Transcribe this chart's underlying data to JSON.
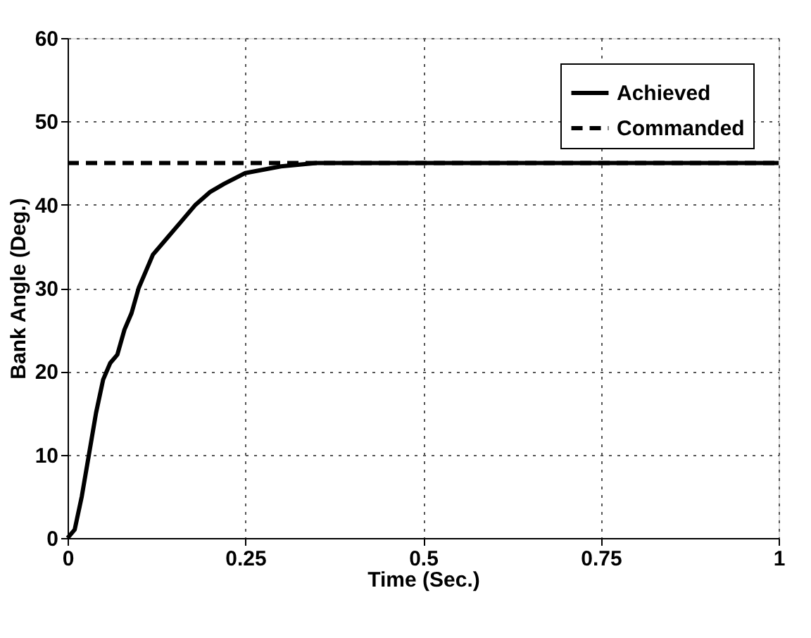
{
  "chart_data": {
    "type": "line",
    "xlabel": "Time (Sec.)",
    "ylabel": "Bank Angle (Deg.)",
    "xlim": [
      0,
      1
    ],
    "xticks": [
      0,
      0.25,
      0.5,
      0.75,
      1
    ],
    "ylim": [
      0,
      60
    ],
    "yticks": [
      0,
      10,
      20,
      30,
      40,
      50,
      60
    ],
    "grid": true,
    "legend": "top right",
    "marker": "none",
    "series": [
      {
        "name": "Achieved",
        "color": "#000000",
        "line_style": "solid",
        "x": [
          0,
          0.01,
          0.02,
          0.03,
          0.04,
          0.05,
          0.06,
          0.07,
          0.08,
          0.09,
          0.1,
          0.11,
          0.12,
          0.14,
          0.16,
          0.18,
          0.2,
          0.22,
          0.25,
          0.3,
          0.35,
          0.4,
          0.5,
          0.75,
          1
        ],
        "values": [
          0,
          1,
          5,
          10,
          15,
          19,
          21,
          22,
          25,
          27,
          30,
          32,
          34,
          36,
          38,
          40,
          41.5,
          42.5,
          43.8,
          44.6,
          45,
          45,
          45,
          45,
          45
        ]
      },
      {
        "name": "Commanded",
        "color": "#000000",
        "line_style": "dashed",
        "x": [
          0,
          1
        ],
        "values": [
          45,
          45
        ]
      }
    ]
  }
}
